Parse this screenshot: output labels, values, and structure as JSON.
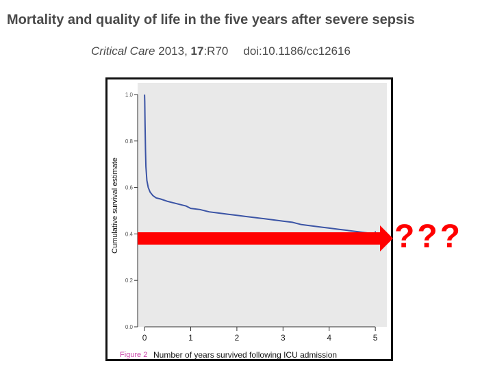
{
  "slide": {
    "title": "Mortality and quality of life in the five years after severe sepsis",
    "citation": {
      "journal": "Critical Care",
      "year": " 2013, ",
      "volume": "17",
      "article": ":R70",
      "doi": "doi:10.1186/cc12616"
    },
    "annotation": "???"
  },
  "colors": {
    "plot_background": "#e9e9e9",
    "curve": "#3b54a5",
    "arrow": "#ff0000",
    "figure_caption": "#cc44aa",
    "text": "#4a4a4a"
  },
  "chart_data": {
    "type": "line",
    "title": "",
    "xlabel": "Number of years survived following ICU admission",
    "ylabel": "Cumulative survival estimate",
    "caption": "Figure 2",
    "xlim": [
      -0.15,
      5.25
    ],
    "ylim": [
      0,
      1.05
    ],
    "x_ticks": [
      "0",
      "1",
      "2",
      "3",
      "4",
      "5"
    ],
    "y_ticks": [
      "0.0",
      "0.2",
      "0.4",
      "0.6",
      "0.8",
      "1.0"
    ],
    "grid": false,
    "series": [
      {
        "x": [
          0,
          0.005,
          0.01,
          0.02,
          0.03,
          0.05,
          0.08,
          0.12,
          0.18,
          0.25,
          0.35,
          0.5,
          0.7,
          0.9,
          1.0,
          1.2,
          1.4,
          1.6,
          1.8,
          2.0,
          2.2,
          2.4,
          2.6,
          2.8,
          3.0,
          3.2,
          3.4,
          3.6,
          3.8,
          4.0,
          4.2,
          4.4,
          4.6,
          4.8,
          5.0
        ],
        "y": [
          1.0,
          0.97,
          0.88,
          0.76,
          0.69,
          0.63,
          0.6,
          0.58,
          0.565,
          0.555,
          0.55,
          0.54,
          0.53,
          0.52,
          0.51,
          0.505,
          0.495,
          0.49,
          0.485,
          0.48,
          0.475,
          0.47,
          0.465,
          0.46,
          0.455,
          0.45,
          0.44,
          0.435,
          0.43,
          0.425,
          0.42,
          0.415,
          0.41,
          0.405,
          0.4
        ]
      }
    ],
    "censor_mark_at": {
      "x": 5.0,
      "y": 0.4
    }
  }
}
